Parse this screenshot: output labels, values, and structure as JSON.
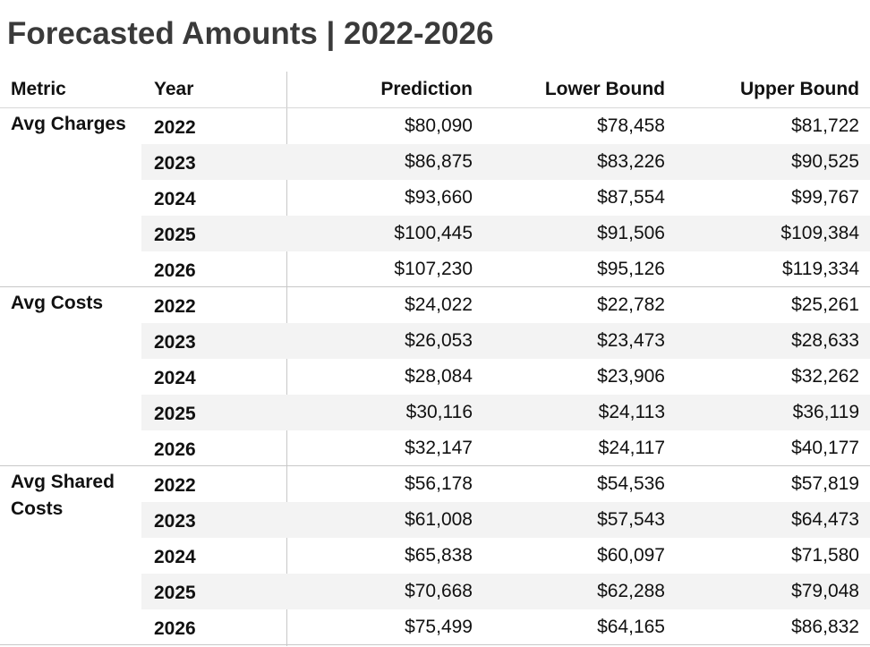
{
  "title": "Forecasted Amounts | 2022-2026",
  "chart_data": {
    "type": "table",
    "title": "Forecasted Amounts | 2022-2026",
    "columns": [
      "Metric",
      "Year",
      "Prediction",
      "Lower Bound",
      "Upper Bound"
    ],
    "groups": [
      {
        "metric": "Avg Charges",
        "rows": [
          {
            "year": "2022",
            "prediction": "$80,090",
            "lower": "$78,458",
            "upper": "$81,722"
          },
          {
            "year": "2023",
            "prediction": "$86,875",
            "lower": "$83,226",
            "upper": "$90,525"
          },
          {
            "year": "2024",
            "prediction": "$93,660",
            "lower": "$87,554",
            "upper": "$99,767"
          },
          {
            "year": "2025",
            "prediction": "$100,445",
            "lower": "$91,506",
            "upper": "$109,384"
          },
          {
            "year": "2026",
            "prediction": "$107,230",
            "lower": "$95,126",
            "upper": "$119,334"
          }
        ]
      },
      {
        "metric": "Avg Costs",
        "rows": [
          {
            "year": "2022",
            "prediction": "$24,022",
            "lower": "$22,782",
            "upper": "$25,261"
          },
          {
            "year": "2023",
            "prediction": "$26,053",
            "lower": "$23,473",
            "upper": "$28,633"
          },
          {
            "year": "2024",
            "prediction": "$28,084",
            "lower": "$23,906",
            "upper": "$32,262"
          },
          {
            "year": "2025",
            "prediction": "$30,116",
            "lower": "$24,113",
            "upper": "$36,119"
          },
          {
            "year": "2026",
            "prediction": "$32,147",
            "lower": "$24,117",
            "upper": "$40,177"
          }
        ]
      },
      {
        "metric": "Avg Shared Costs",
        "rows": [
          {
            "year": "2022",
            "prediction": "$56,178",
            "lower": "$54,536",
            "upper": "$57,819"
          },
          {
            "year": "2023",
            "prediction": "$61,008",
            "lower": "$57,543",
            "upper": "$64,473"
          },
          {
            "year": "2024",
            "prediction": "$65,838",
            "lower": "$60,097",
            "upper": "$71,580"
          },
          {
            "year": "2025",
            "prediction": "$70,668",
            "lower": "$62,288",
            "upper": "$79,048"
          },
          {
            "year": "2026",
            "prediction": "$75,499",
            "lower": "$64,165",
            "upper": "$86,832"
          }
        ]
      }
    ]
  }
}
